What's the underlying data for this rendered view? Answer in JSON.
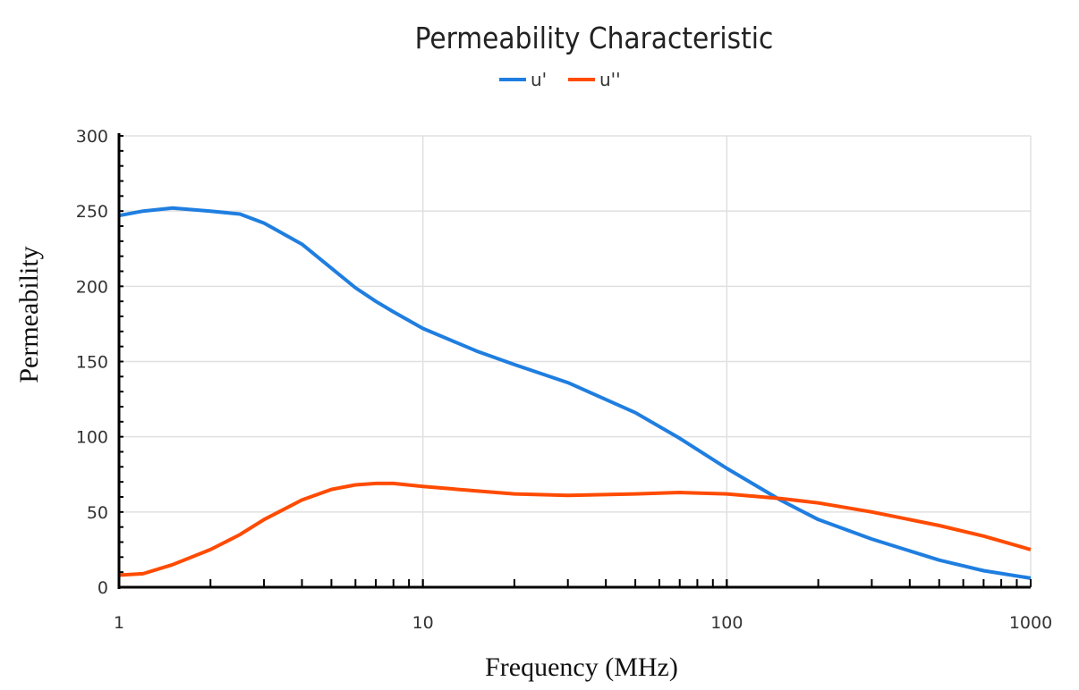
{
  "chart_data": {
    "type": "line",
    "title": "Permeability Characteristic",
    "xlabel": "Frequency (MHz)",
    "ylabel": "Permeability",
    "xscale": "log",
    "xlim": [
      1,
      1000
    ],
    "ylim": [
      0,
      300
    ],
    "xticks": [
      "1",
      "10",
      "100",
      "1000"
    ],
    "yticks": [
      "0",
      "50",
      "100",
      "150",
      "200",
      "250",
      "300"
    ],
    "grid": true,
    "legend": "top-center",
    "x": [
      1,
      1.2,
      1.5,
      2,
      2.5,
      3,
      4,
      5,
      6,
      7,
      8,
      10,
      15,
      20,
      30,
      50,
      70,
      100,
      150,
      200,
      300,
      500,
      700,
      1000
    ],
    "series": [
      {
        "name": "u'",
        "color": "#1f7ee0",
        "values": [
          247,
          250,
          252,
          250,
          248,
          242,
          228,
          212,
          199,
          190,
          183,
          172,
          157,
          148,
          136,
          116,
          99,
          79,
          58,
          45,
          32,
          18,
          11,
          6
        ]
      },
      {
        "name": "u''",
        "color": "#ff4b00",
        "values": [
          8,
          9,
          15,
          25,
          35,
          45,
          58,
          65,
          68,
          69,
          69,
          67,
          64,
          62,
          61,
          62,
          63,
          62,
          59,
          56,
          50,
          41,
          34,
          25
        ]
      }
    ]
  }
}
